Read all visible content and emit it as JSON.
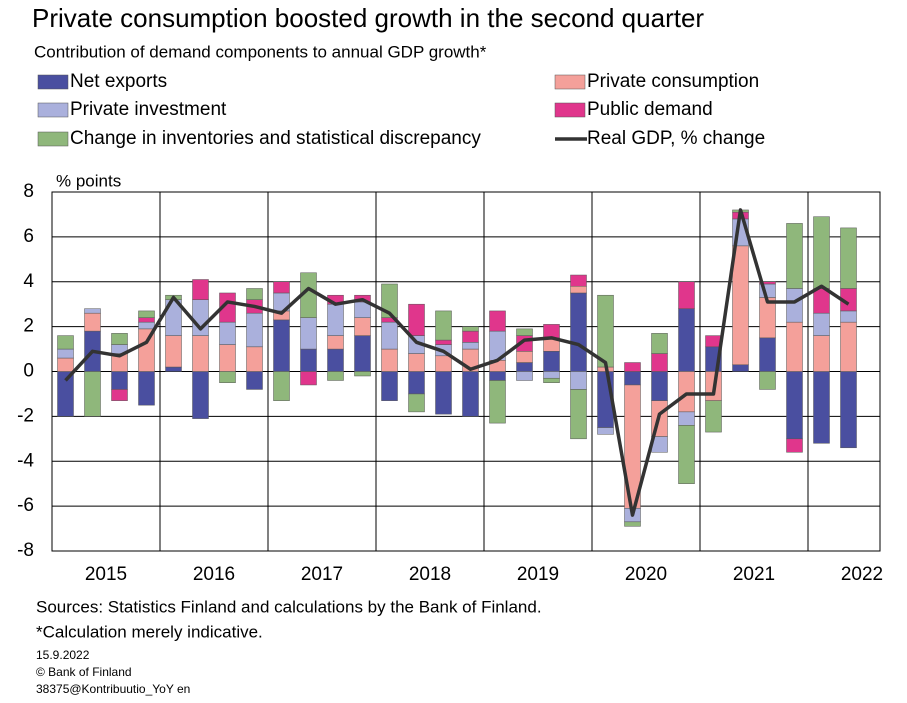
{
  "chart_data": {
    "type": "bar",
    "title": "Private consumption boosted growth in the second quarter",
    "subtitle": "Contribution of demand components to annual GDP growth*",
    "y_label": "% points",
    "stacked": true,
    "categories": [
      "2015",
      null,
      null,
      null,
      "2016",
      null,
      null,
      null,
      "2017",
      null,
      null,
      null,
      "2018",
      null,
      null,
      null,
      "2019",
      null,
      null,
      null,
      "2020",
      null,
      null,
      null,
      "2021",
      null,
      null,
      null,
      "2022",
      null
    ],
    "series": [
      {
        "name": "Net exports",
        "color": "#4a4fa0",
        "values": [
          -2.0,
          1.8,
          -0.8,
          -1.5,
          0.2,
          -2.1,
          0,
          -0.8,
          2.3,
          1.0,
          1.0,
          1.6,
          -1.3,
          -1.0,
          -1.9,
          -2.0,
          -0.4,
          0.4,
          0.9,
          3.5,
          -2.5,
          -0.6,
          -1.3,
          2.8,
          1.1,
          0.3,
          1.5,
          -3.0,
          -3.2,
          -3.4
        ]
      },
      {
        "name": "Private consumption",
        "color": "#f4a09a",
        "values": [
          0.6,
          0.8,
          0.8,
          1.9,
          1.4,
          1.6,
          1.2,
          1.1,
          0.4,
          0.0,
          0.6,
          0.8,
          1.0,
          0.8,
          0.7,
          1.0,
          0.5,
          0.5,
          0.6,
          0.3,
          0.2,
          -5.5,
          -1.6,
          -1.8,
          -1.3,
          5.3,
          1.8,
          2.2,
          1.6,
          2.2
        ]
      },
      {
        "name": "Private investment",
        "color": "#aab0dc",
        "values": [
          0.4,
          0.2,
          0.4,
          0.3,
          1.6,
          1.6,
          1.0,
          1.5,
          0.8,
          1.4,
          1.4,
          0.7,
          1.2,
          0.8,
          0.5,
          0.3,
          1.3,
          -0.4,
          -0.3,
          -0.8,
          -0.3,
          -0.6,
          -0.7,
          -0.6,
          0,
          1.2,
          0.6,
          1.5,
          1.0,
          0.5
        ]
      },
      {
        "name": "Public demand",
        "color": "#e0368c",
        "values": [
          0,
          0,
          -0.5,
          0.2,
          0,
          0.9,
          1.3,
          0.6,
          0.5,
          -0.6,
          0.4,
          0.3,
          0.2,
          1.4,
          0.2,
          0.5,
          0.9,
          0.7,
          0.6,
          0.5,
          0,
          0.4,
          0.8,
          1.2,
          0.5,
          0.3,
          0.1,
          -0.6,
          1.1,
          1.0
        ]
      },
      {
        "name": "Change in inventories and statistical discrepancy",
        "color": "#8fb77b",
        "values": [
          0.6,
          -2.0,
          0.5,
          0.3,
          0.2,
          0,
          -0.5,
          0.5,
          -1.3,
          2.0,
          -0.4,
          -0.2,
          1.5,
          -0.8,
          1.3,
          0.2,
          -1.9,
          0.3,
          -0.2,
          -2.2,
          3.2,
          -0.2,
          0.9,
          -2.6,
          -1.4,
          0.1,
          -0.8,
          2.9,
          3.2,
          2.7
        ]
      },
      {
        "name": "Real GDP, % change",
        "color": "#333333",
        "type": "line",
        "values": [
          -0.4,
          0.9,
          0.7,
          1.3,
          3.3,
          1.9,
          3.1,
          2.9,
          2.6,
          3.7,
          3.0,
          3.2,
          2.6,
          1.3,
          0.9,
          0.1,
          0.5,
          1.4,
          1.5,
          1.2,
          0.4,
          -6.4,
          -1.9,
          -1.0,
          -1.0,
          7.2,
          3.1,
          3.1,
          3.8,
          3.0
        ]
      }
    ],
    "ylim": [
      -8,
      8
    ],
    "yticks": [
      -8,
      -6,
      -4,
      -2,
      0,
      2,
      4,
      6,
      8
    ],
    "grid": true,
    "notes": [
      "Sources: Statistics Finland and calculations by the Bank of Finland.",
      "*Calculation merely indicative."
    ],
    "footer": [
      "15.9.2022",
      "© Bank of Finland",
      "38375@Kontribuutio_YoY en"
    ]
  }
}
